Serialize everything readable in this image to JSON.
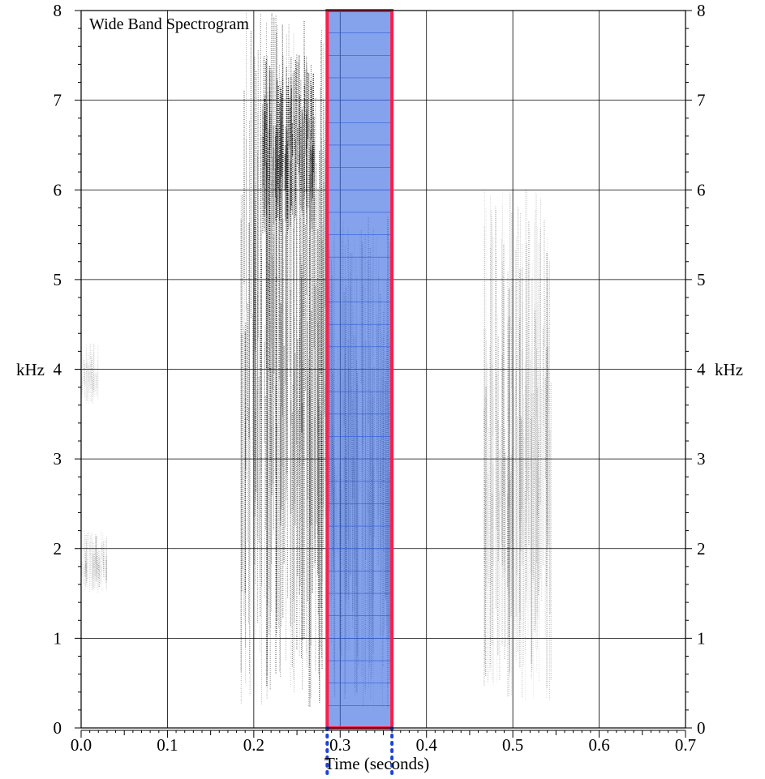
{
  "chart_data": {
    "type": "heatmap",
    "title": "Wide Band Spectrogram",
    "xlabel": "Time (seconds)",
    "ylabel": "kHz",
    "xlim": [
      0.0,
      0.7
    ],
    "ylim": [
      0,
      8
    ],
    "grid": true,
    "x_ticks": [
      0.0,
      0.1,
      0.2,
      0.3,
      0.4,
      0.5,
      0.6,
      0.7
    ],
    "x_tick_labels": [
      "0.0",
      "0.1",
      "0.2",
      "0.3",
      "0.4",
      "0.5",
      "0.6",
      "0.7"
    ],
    "y_ticks": [
      0,
      1,
      2,
      3,
      4,
      5,
      6,
      7,
      8
    ],
    "y_tick_labels": [
      "0",
      "1",
      "2",
      "3",
      "4",
      "5",
      "6",
      "7",
      "8"
    ],
    "energy_regions": [
      {
        "t_start": 0.185,
        "t_end": 0.285,
        "f_low": 0.2,
        "f_high": 8.0,
        "intensity": 0.55
      },
      {
        "t_start": 0.21,
        "t_end": 0.27,
        "f_low": 5.5,
        "f_high": 7.5,
        "intensity": 0.85
      },
      {
        "t_start": 0.285,
        "t_end": 0.36,
        "f_low": 0.2,
        "f_high": 5.7,
        "intensity": 0.35
      },
      {
        "t_start": 0.0,
        "t_end": 0.03,
        "f_low": 1.5,
        "f_high": 2.2,
        "intensity": 0.2
      },
      {
        "t_start": 0.0,
        "t_end": 0.02,
        "f_low": 3.6,
        "f_high": 4.3,
        "intensity": 0.15
      },
      {
        "t_start": 0.465,
        "t_end": 0.545,
        "f_low": 0.3,
        "f_high": 6.0,
        "intensity": 0.25
      }
    ],
    "selection": {
      "t_start": 0.285,
      "t_end": 0.36,
      "f_low": 0.0,
      "f_high": 8.0,
      "fill": "#3a6ae0",
      "border": "#ff1e46"
    },
    "cursors": [
      0.285,
      0.36
    ],
    "cursor_color": "#1f45d6"
  }
}
